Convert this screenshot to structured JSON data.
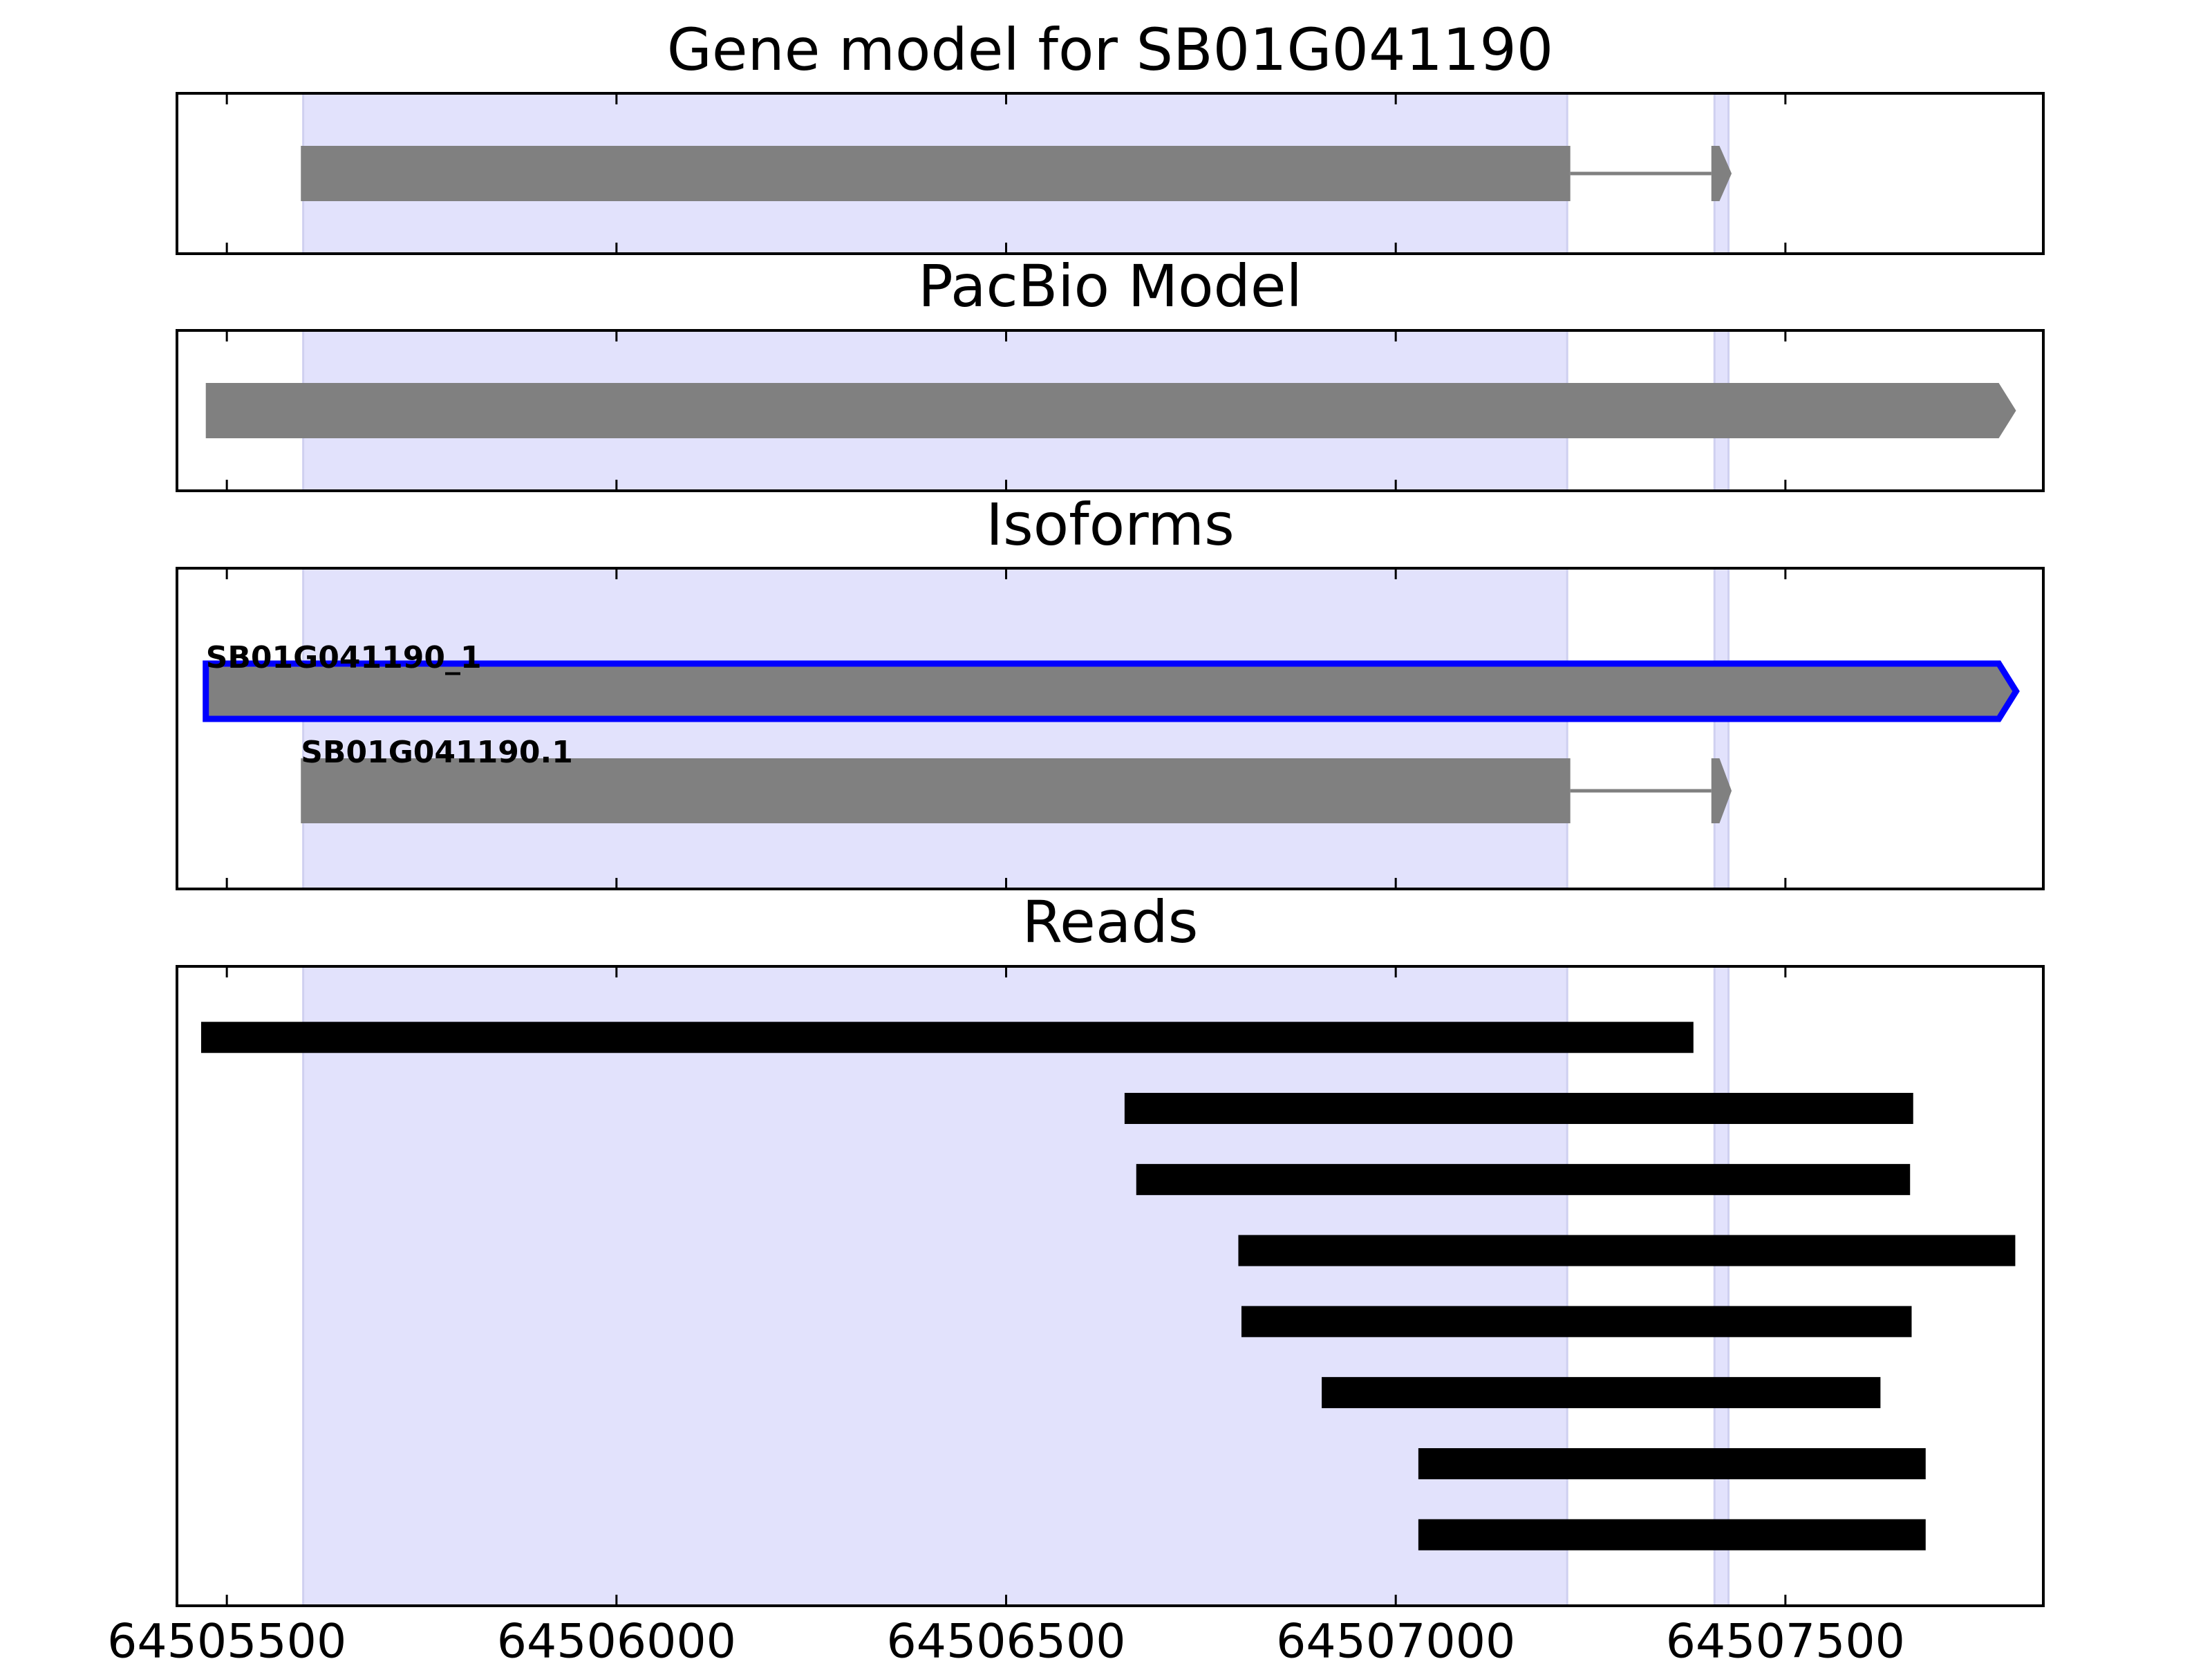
{
  "chart_data": {
    "type": "genome-tracks",
    "xlim": [
      64505436,
      64507831
    ],
    "xticks": [
      64505500,
      64506000,
      64506500,
      64507000,
      64507500
    ],
    "highlights": [
      [
        64505598,
        64507220
      ],
      [
        64507409,
        64507427
      ]
    ],
    "highlight_color": "#e2e2fc",
    "panels": [
      {
        "title": "Gene model for SB01G041190",
        "color": "#808080",
        "arrow": true,
        "features": [
          {
            "exons": [
              [
                64505595,
                64507224
              ],
              [
                64507405,
                64507431
              ]
            ]
          }
        ]
      },
      {
        "title": "PacBio Model",
        "color": "#808080",
        "arrow": true,
        "features": [
          {
            "exons": [
              [
                64505473,
                64507796
              ]
            ]
          }
        ]
      },
      {
        "title": "Isoforms",
        "color": "#808080",
        "arrow": true,
        "features": [
          {
            "name": "SB01G041190_1",
            "outline": "#0000ff",
            "exons": [
              [
                64505473,
                64507796
              ]
            ]
          },
          {
            "name": "SB01G041190.1",
            "exons": [
              [
                64505595,
                64507224
              ],
              [
                64507405,
                64507431
              ]
            ]
          }
        ]
      },
      {
        "title": "Reads",
        "color": "#000000",
        "arrow": false,
        "features": [
          {
            "exons": [
              [
                64505467,
                64507382
              ]
            ]
          },
          {
            "exons": [
              [
                64506652,
                64507664
              ]
            ]
          },
          {
            "exons": [
              [
                64506667,
                64507660
              ]
            ]
          },
          {
            "exons": [
              [
                64506798,
                64507795
              ]
            ]
          },
          {
            "exons": [
              [
                64506802,
                64507662
              ]
            ]
          },
          {
            "exons": [
              [
                64506905,
                64507622
              ]
            ]
          },
          {
            "exons": [
              [
                64507029,
                64507680
              ]
            ]
          },
          {
            "exons": [
              [
                64507029,
                64507680
              ]
            ]
          }
        ]
      }
    ]
  }
}
